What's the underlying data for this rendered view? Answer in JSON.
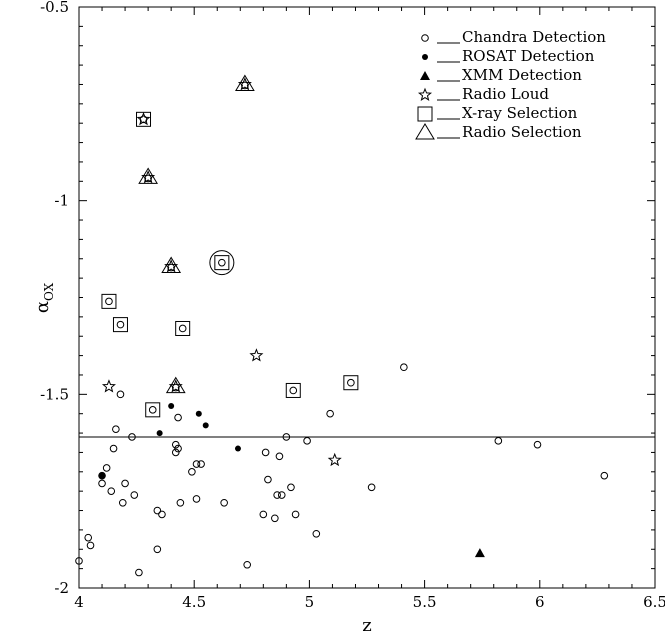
{
  "chart_data": {
    "type": "scatter",
    "title": "",
    "xlabel": "z",
    "ylabel_symbol": "α",
    "ylabel_subscript": "OX",
    "xlim": [
      4,
      6.5
    ],
    "ylim": [
      -2,
      -0.5
    ],
    "y_inverted": true,
    "x_ticks": [
      "4",
      "4.5",
      "5",
      "5.5",
      "6",
      "6.5"
    ],
    "y_ticks": [
      "-0.5",
      "-1",
      "-1.5",
      "-2"
    ],
    "x_tick_values": [
      4,
      4.5,
      5,
      5.5,
      6,
      6.5
    ],
    "y_tick_values": [
      -0.5,
      -1,
      -1.5,
      -2
    ],
    "reference_line_y": -1.61,
    "legend_position": "top-right",
    "legend": [
      {
        "symbol": "open-circle",
        "label": "Chandra Detection"
      },
      {
        "symbol": "filled-circle",
        "label": "ROSAT Detection"
      },
      {
        "symbol": "filled-triangle",
        "label": "XMM Detection"
      },
      {
        "symbol": "star",
        "label": "Radio Loud"
      },
      {
        "symbol": "square",
        "label": "X-ray Selection"
      },
      {
        "symbol": "triangle",
        "label": "Radio Selection"
      }
    ],
    "series": [
      {
        "name": "Chandra Detection",
        "symbol": "open-circle",
        "points": [
          [
            4.0,
            -1.93
          ],
          [
            4.04,
            -1.87
          ],
          [
            4.05,
            -1.89
          ],
          [
            4.1,
            -1.73
          ],
          [
            4.1,
            -1.71
          ],
          [
            4.12,
            -1.69
          ],
          [
            4.14,
            -1.75
          ],
          [
            4.15,
            -1.64
          ],
          [
            4.16,
            -1.59
          ],
          [
            4.18,
            -1.5
          ],
          [
            4.19,
            -1.78
          ],
          [
            4.2,
            -1.73
          ],
          [
            4.23,
            -1.61
          ],
          [
            4.24,
            -1.76
          ],
          [
            4.26,
            -1.96
          ],
          [
            4.34,
            -1.8
          ],
          [
            4.34,
            -1.9
          ],
          [
            4.36,
            -1.81
          ],
          [
            4.42,
            -1.63
          ],
          [
            4.42,
            -1.65
          ],
          [
            4.43,
            -1.64
          ],
          [
            4.43,
            -1.56
          ],
          [
            4.44,
            -1.78
          ],
          [
            4.49,
            -1.7
          ],
          [
            4.51,
            -1.68
          ],
          [
            4.51,
            -1.77
          ],
          [
            4.53,
            -1.68
          ],
          [
            4.63,
            -1.78
          ],
          [
            4.73,
            -1.94
          ],
          [
            4.8,
            -1.81
          ],
          [
            4.81,
            -1.65
          ],
          [
            4.82,
            -1.72
          ],
          [
            4.85,
            -1.82
          ],
          [
            4.86,
            -1.76
          ],
          [
            4.87,
            -1.66
          ],
          [
            4.88,
            -1.76
          ],
          [
            4.9,
            -1.61
          ],
          [
            4.92,
            -1.74
          ],
          [
            4.94,
            -1.81
          ],
          [
            4.99,
            -1.62
          ],
          [
            5.03,
            -1.86
          ],
          [
            5.09,
            -1.55
          ],
          [
            5.27,
            -1.74
          ],
          [
            5.41,
            -1.43
          ],
          [
            5.82,
            -1.62
          ],
          [
            5.99,
            -1.63
          ],
          [
            6.28,
            -1.71
          ]
        ]
      },
      {
        "name": "ROSAT Detection",
        "symbol": "filled-circle",
        "points": [
          [
            4.1,
            -1.71
          ],
          [
            4.35,
            -1.6
          ],
          [
            4.4,
            -1.53
          ],
          [
            4.52,
            -1.55
          ],
          [
            4.55,
            -1.58
          ],
          [
            4.69,
            -1.64
          ]
        ]
      },
      {
        "name": "XMM Detection",
        "symbol": "filled-triangle",
        "points": [
          [
            5.74,
            -1.91
          ]
        ]
      },
      {
        "name": "Radio Loud",
        "symbol": "star",
        "points": [
          [
            4.13,
            -1.48
          ],
          [
            4.28,
            -0.79
          ],
          [
            4.3,
            -0.94
          ],
          [
            4.4,
            -1.17
          ],
          [
            4.42,
            -1.48
          ],
          [
            4.72,
            -0.7
          ],
          [
            4.77,
            -1.4
          ],
          [
            5.11,
            -1.67
          ]
        ]
      },
      {
        "name": "X-ray Selection",
        "symbol": "square",
        "points": [
          [
            4.13,
            -1.26
          ],
          [
            4.18,
            -1.32
          ],
          [
            4.28,
            -0.79
          ],
          [
            4.32,
            -1.54
          ],
          [
            4.45,
            -1.33
          ],
          [
            4.62,
            -1.16
          ],
          [
            4.93,
            -1.49
          ],
          [
            5.18,
            -1.47
          ]
        ]
      },
      {
        "name": "Radio Selection",
        "symbol": "triangle",
        "points": [
          [
            4.3,
            -0.94
          ],
          [
            4.4,
            -1.17
          ],
          [
            4.42,
            -1.48
          ],
          [
            4.72,
            -0.7
          ]
        ]
      },
      {
        "name": "",
        "symbol": "big-circle",
        "points": [
          [
            4.62,
            -1.16
          ]
        ]
      }
    ],
    "marker_fills": {
      "X-ray Selection": "open-circle",
      "Radio Selection": "open-circle"
    }
  },
  "colors": {
    "axis": "#000000",
    "background": "#ffffff",
    "marker": "#000000"
  }
}
